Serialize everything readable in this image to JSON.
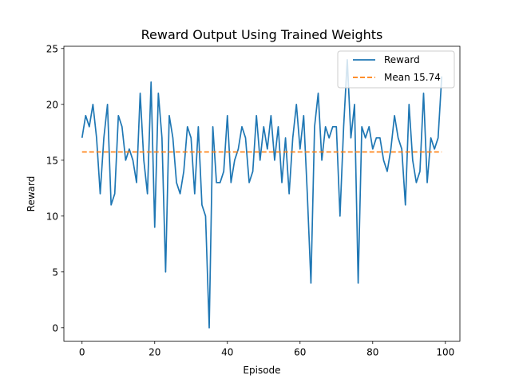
{
  "chart_data": {
    "type": "line",
    "title": "Reward Output Using Trained Weights",
    "xlabel": "Episode",
    "ylabel": "Reward",
    "xlim": [
      -5,
      104
    ],
    "ylim": [
      -1.2,
      25.2
    ],
    "xticks": [
      0,
      20,
      40,
      60,
      80,
      100
    ],
    "yticks": [
      0,
      5,
      10,
      15,
      20,
      25
    ],
    "grid": false,
    "legend_position": "top-right",
    "colors": {
      "reward": "#1f77b4",
      "mean": "#ff7f0e"
    },
    "series": [
      {
        "name": "Reward",
        "style": "solid",
        "x": [
          0,
          1,
          2,
          3,
          4,
          5,
          6,
          7,
          8,
          9,
          10,
          11,
          12,
          13,
          14,
          15,
          16,
          17,
          18,
          19,
          20,
          21,
          22,
          23,
          24,
          25,
          26,
          27,
          28,
          29,
          30,
          31,
          32,
          33,
          34,
          35,
          36,
          37,
          38,
          39,
          40,
          41,
          42,
          43,
          44,
          45,
          46,
          47,
          48,
          49,
          50,
          51,
          52,
          53,
          54,
          55,
          56,
          57,
          58,
          59,
          60,
          61,
          62,
          63,
          64,
          65,
          66,
          67,
          68,
          69,
          70,
          71,
          72,
          73,
          74,
          75,
          76,
          77,
          78,
          79,
          80,
          81,
          82,
          83,
          84,
          85,
          86,
          87,
          88,
          89,
          90,
          91,
          92,
          93,
          94,
          95,
          96,
          97,
          98,
          99
        ],
        "values": [
          17,
          19,
          18,
          20,
          17,
          12,
          17,
          20,
          11,
          12,
          19,
          18,
          15,
          16,
          15,
          13,
          21,
          15,
          12,
          22,
          9,
          21,
          17,
          5,
          19,
          17,
          13,
          12,
          14,
          18,
          17,
          12,
          18,
          11,
          10,
          0,
          18,
          13,
          13,
          14,
          19,
          13,
          15,
          16,
          18,
          17,
          13,
          14,
          19,
          15,
          18,
          16,
          19,
          15,
          18,
          13,
          17,
          12,
          17,
          20,
          16,
          19,
          12,
          4,
          18,
          21,
          15,
          18,
          17,
          18,
          18,
          10,
          18,
          24,
          17,
          20,
          4,
          18,
          17,
          18,
          16,
          17,
          17,
          15,
          14,
          16,
          19,
          17,
          16,
          11,
          20,
          15,
          13,
          14,
          21,
          13,
          17,
          16,
          17,
          22.5
        ]
      },
      {
        "name": "Mean 15.74",
        "style": "dashed",
        "x": [
          0,
          99
        ],
        "values": [
          15.74,
          15.74
        ]
      }
    ]
  }
}
